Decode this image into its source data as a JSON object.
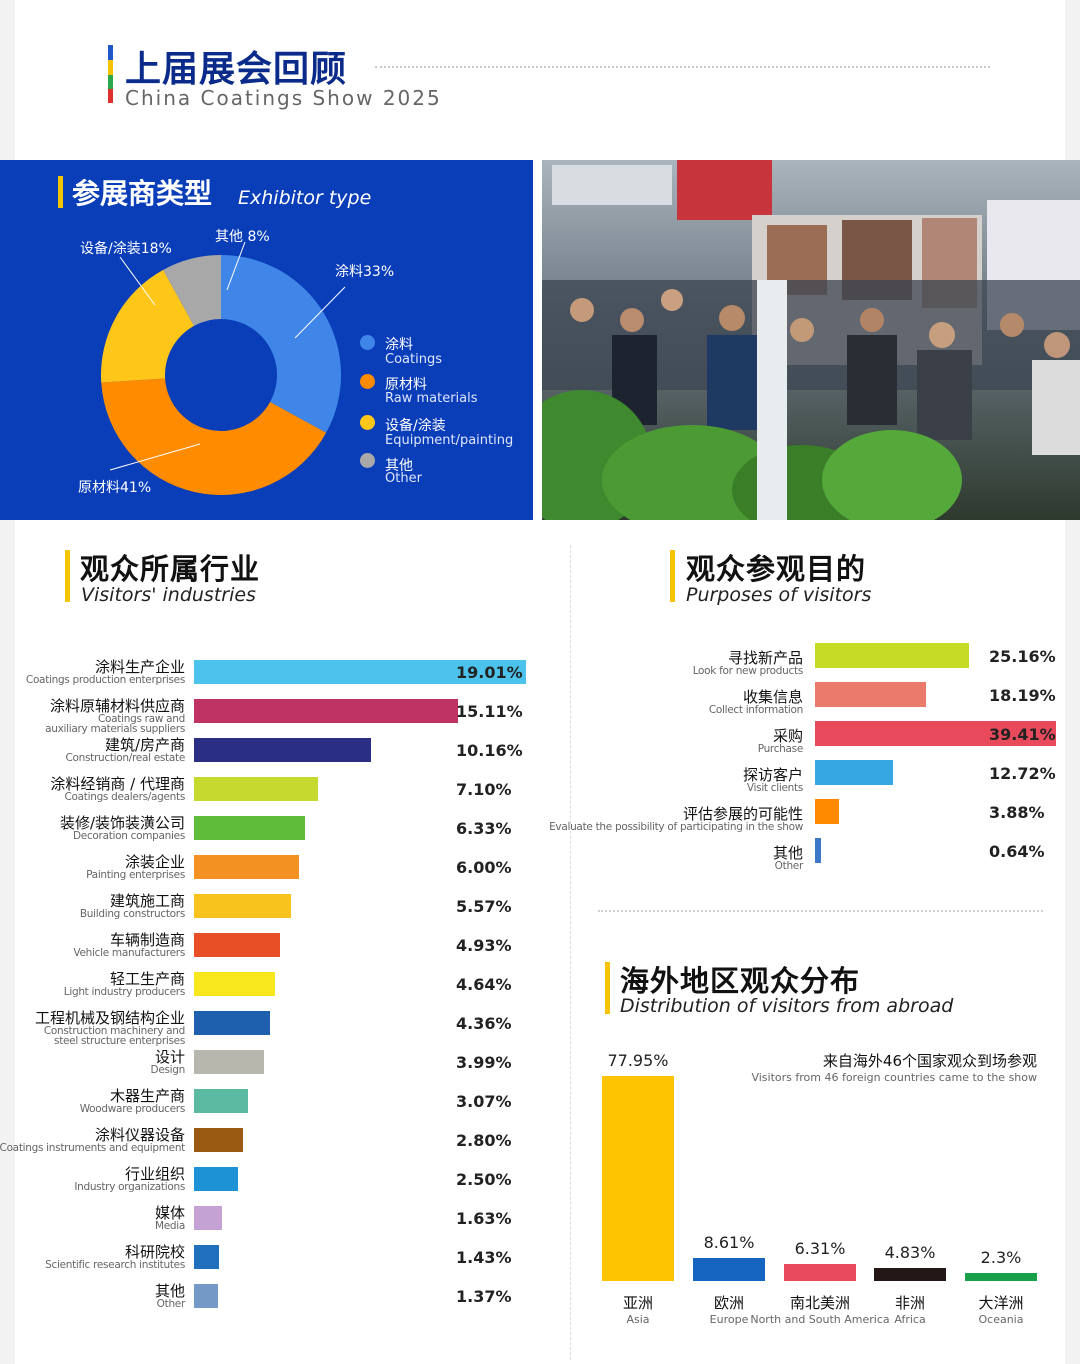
{
  "header": {
    "title": "上届展会回顾",
    "subtitle": "China Coatings Show 2025"
  },
  "exhibitor": {
    "title_cn": "参展商类型",
    "title_en": "Exhibitor type",
    "callouts": [
      "涂料33%",
      "原材料41%",
      "设备/涂装18%",
      "其他 8%"
    ],
    "legend": [
      {
        "cn": "涂料",
        "en": "Coatings",
        "color": "#3f86e8"
      },
      {
        "cn": "原材料",
        "en": "Raw materials",
        "color": "#ff8c00"
      },
      {
        "cn": "设备/涂装",
        "en": "Equipment/painting",
        "color": "#ffc61a"
      },
      {
        "cn": "其他",
        "en": "Other",
        "color": "#a8a8a8"
      }
    ]
  },
  "industries": {
    "title_cn": "观众所属行业",
    "title_en": "Visitors' industries"
  },
  "purposes": {
    "title_cn": "观众参观目的",
    "title_en": "Purposes of visitors"
  },
  "abroad": {
    "title_cn": "海外地区观众分布",
    "title_en": "Distribution of visitors from abroad",
    "note_cn": "来自海外46个国家观众到场参观",
    "note_en": "Visitors from 46 foreign countries came to the show"
  },
  "chart_data": [
    {
      "type": "pie",
      "title": "参展商类型 Exhibitor type",
      "categories": [
        "涂料 Coatings",
        "原材料 Raw materials",
        "设备/涂装 Equipment/painting",
        "其他 Other"
      ],
      "values": [
        33,
        41,
        18,
        8
      ],
      "colors": [
        "#3f86e8",
        "#ff8c00",
        "#ffc61a",
        "#a8a8a8"
      ],
      "legend": "right"
    },
    {
      "type": "bar",
      "orientation": "horizontal",
      "title": "观众所属行业 Visitors' industries",
      "xlim": [
        0,
        19.01
      ],
      "items": [
        {
          "cn": "涂料生产企业",
          "en": [
            "Coatings production enterprises"
          ],
          "value": 19.01,
          "label": "19.01%",
          "color": "#4cc3ec"
        },
        {
          "cn": "涂料原辅材料供应商",
          "en": [
            "Coatings raw and",
            "auxiliary materials suppliers"
          ],
          "value": 15.11,
          "label": "15.11%",
          "color": "#bf3364"
        },
        {
          "cn": "建筑/房产商",
          "en": [
            "Construction/real estate"
          ],
          "value": 10.16,
          "label": "10.16%",
          "color": "#2a2e85"
        },
        {
          "cn": "涂料经销商 / 代理商",
          "en": [
            "Coatings dealers/agents"
          ],
          "value": 7.1,
          "label": "7.10%",
          "color": "#c5d92e"
        },
        {
          "cn": "装修/装饰装潢公司",
          "en": [
            "Decoration companies"
          ],
          "value": 6.33,
          "label": "6.33%",
          "color": "#5fbb3a"
        },
        {
          "cn": "涂装企业",
          "en": [
            "Painting enterprises"
          ],
          "value": 6.0,
          "label": "6.00%",
          "color": "#f39122"
        },
        {
          "cn": "建筑施工商",
          "en": [
            "Building constructors"
          ],
          "value": 5.57,
          "label": "5.57%",
          "color": "#f7c31c"
        },
        {
          "cn": "车辆制造商",
          "en": [
            "Vehicle manufacturers"
          ],
          "value": 4.93,
          "label": "4.93%",
          "color": "#e94f27"
        },
        {
          "cn": "轻工生产商",
          "en": [
            "Light industry producers"
          ],
          "value": 4.64,
          "label": "4.64%",
          "color": "#f8e71c"
        },
        {
          "cn": "工程机械及钢结构企业",
          "en": [
            "Construction machinery and",
            "steel structure enterprises"
          ],
          "value": 4.36,
          "label": "4.36%",
          "color": "#1e5fae"
        },
        {
          "cn": "设计",
          "en": [
            "Design"
          ],
          "value": 3.99,
          "label": "3.99%",
          "color": "#b7b7ad"
        },
        {
          "cn": "木器生产商",
          "en": [
            "Woodware producers"
          ],
          "value": 3.07,
          "label": "3.07%",
          "color": "#5cb9a2"
        },
        {
          "cn": "涂料仪器设备",
          "en": [
            "Coatings instruments and equipment"
          ],
          "value": 2.8,
          "label": "2.80%",
          "color": "#9b5a12"
        },
        {
          "cn": "行业组织",
          "en": [
            "Industry organizations"
          ],
          "value": 2.5,
          "label": "2.50%",
          "color": "#1d93d6"
        },
        {
          "cn": "媒体",
          "en": [
            "Media"
          ],
          "value": 1.63,
          "label": "1.63%",
          "color": "#c4a3d4"
        },
        {
          "cn": "科研院校",
          "en": [
            "Scientific research institutes"
          ],
          "value": 1.43,
          "label": "1.43%",
          "color": "#1f6fbd"
        },
        {
          "cn": "其他",
          "en": [
            "Other"
          ],
          "value": 1.37,
          "label": "1.37%",
          "color": "#7399c6"
        }
      ]
    },
    {
      "type": "bar",
      "orientation": "horizontal",
      "title": "观众参观目的 Purposes of visitors",
      "xlim": [
        0,
        39.41
      ],
      "items": [
        {
          "cn": "寻找新产品",
          "en": [
            "Look for new products"
          ],
          "value": 25.16,
          "label": "25.16%",
          "color": "#c6dc24"
        },
        {
          "cn": "收集信息",
          "en": [
            "Collect information"
          ],
          "value": 18.19,
          "label": "18.19%",
          "color": "#ea7b6c"
        },
        {
          "cn": "采购",
          "en": [
            "Purchase"
          ],
          "value": 39.41,
          "label": "39.41%",
          "color": "#e84a5c"
        },
        {
          "cn": "探访客户",
          "en": [
            "Visit clients"
          ],
          "value": 12.72,
          "label": "12.72%",
          "color": "#37a7e3"
        },
        {
          "cn": "评估参展的可能性",
          "en": [
            "Evaluate the possibility of participating in the show"
          ],
          "value": 3.88,
          "label": "3.88%",
          "color": "#ff8a00"
        },
        {
          "cn": "其他",
          "en": [
            "Other"
          ],
          "value": 0.64,
          "label": "0.64%",
          "color": "#3c78c8"
        }
      ]
    },
    {
      "type": "bar",
      "orientation": "vertical",
      "title": "海外地区观众分布 Distribution of visitors from abroad",
      "ylim": [
        0,
        77.95
      ],
      "items": [
        {
          "cn": "亚洲",
          "en": "Asia",
          "value": 77.95,
          "label": "77.95%",
          "color": "#ffc400"
        },
        {
          "cn": "欧洲",
          "en": "Europe",
          "value": 8.61,
          "label": "8.61%",
          "color": "#1565c0"
        },
        {
          "cn": "南北美洲",
          "en": "North and South America",
          "value": 6.31,
          "label": "6.31%",
          "color": "#e84a5c"
        },
        {
          "cn": "非洲",
          "en": "Africa",
          "value": 4.83,
          "label": "4.83%",
          "color": "#231815"
        },
        {
          "cn": "大洋洲",
          "en": "Oceania",
          "value": 2.3,
          "label": "2.3%",
          "color": "#18a04a"
        }
      ]
    }
  ]
}
